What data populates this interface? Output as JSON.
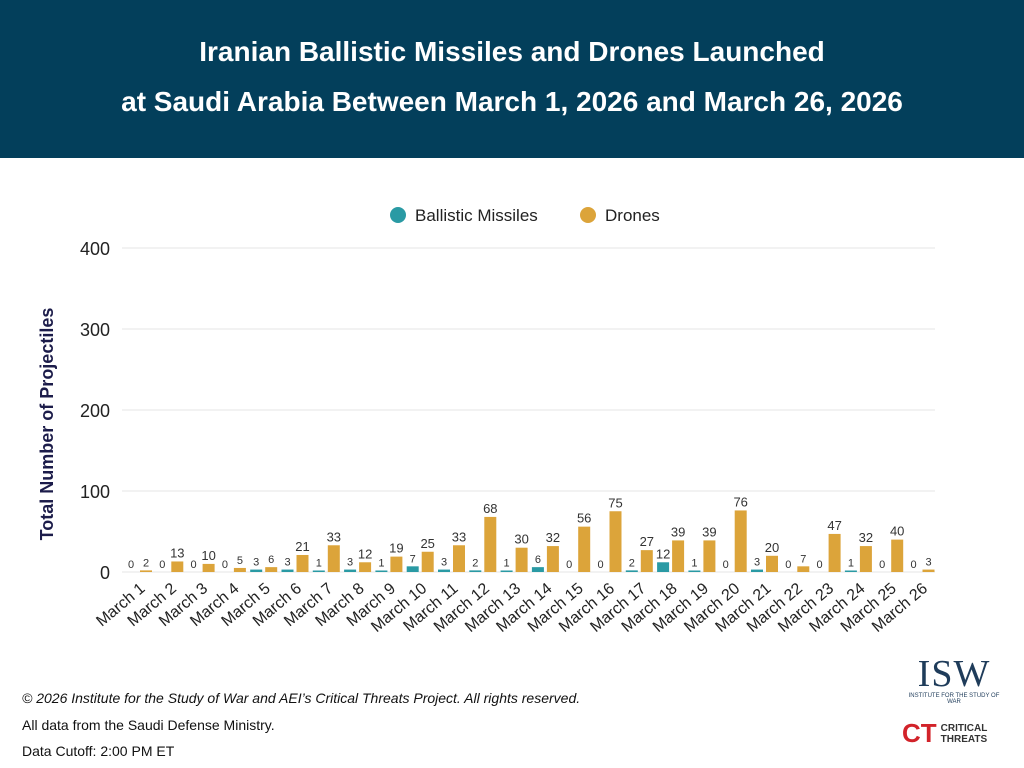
{
  "header": {
    "title_line1": "Iranian Ballistic Missiles and Drones Launched",
    "title_line2": "at Saudi Arabia Between March 1, 2026 and March 26, 2026"
  },
  "chart_data": {
    "type": "bar",
    "ylabel": "Total Number of Projectiles",
    "ylim": [
      0,
      400
    ],
    "yticks": [
      0,
      100,
      200,
      300,
      400
    ],
    "grid": true,
    "legend_placement": "top-center",
    "categories": [
      "March 1",
      "March 2",
      "March 3",
      "March 4",
      "March 5",
      "March 6",
      "March 7",
      "March 8",
      "March 9",
      "March 10",
      "March 11",
      "March 12",
      "March 13",
      "March 14",
      "March 15",
      "March 16",
      "March 17",
      "March 18",
      "March 19",
      "March 20",
      "March 21",
      "March 22",
      "March 23",
      "March 24",
      "March 25",
      "March 26"
    ],
    "series": [
      {
        "name": "Ballistic Missiles",
        "color": "#2a9aa4",
        "values": [
          0,
          0,
          0,
          0,
          3,
          3,
          1,
          3,
          1,
          7,
          3,
          2,
          1,
          6,
          0,
          0,
          2,
          12,
          1,
          0,
          3,
          0,
          0,
          1,
          0,
          0
        ]
      },
      {
        "name": "Drones",
        "color": "#dca43a",
        "values": [
          2,
          13,
          10,
          5,
          6,
          21,
          33,
          12,
          19,
          25,
          33,
          68,
          30,
          32,
          56,
          75,
          27,
          39,
          39,
          76,
          20,
          7,
          47,
          32,
          40,
          3
        ]
      }
    ]
  },
  "footer": {
    "copyright": "© 2026 Institute for the Study of War and AEI’s Critical Threats Project. All rights reserved.",
    "source": "All data from the Saudi Defense Ministry.",
    "cutoff": "Data Cutoff: 2:00 PM ET"
  },
  "logos": {
    "isw": "ISW",
    "isw_sub": "INSTITUTE FOR THE STUDY OF WAR",
    "ct": "CT",
    "ct_sub1": "CRITICAL",
    "ct_sub2": "THREATS"
  }
}
